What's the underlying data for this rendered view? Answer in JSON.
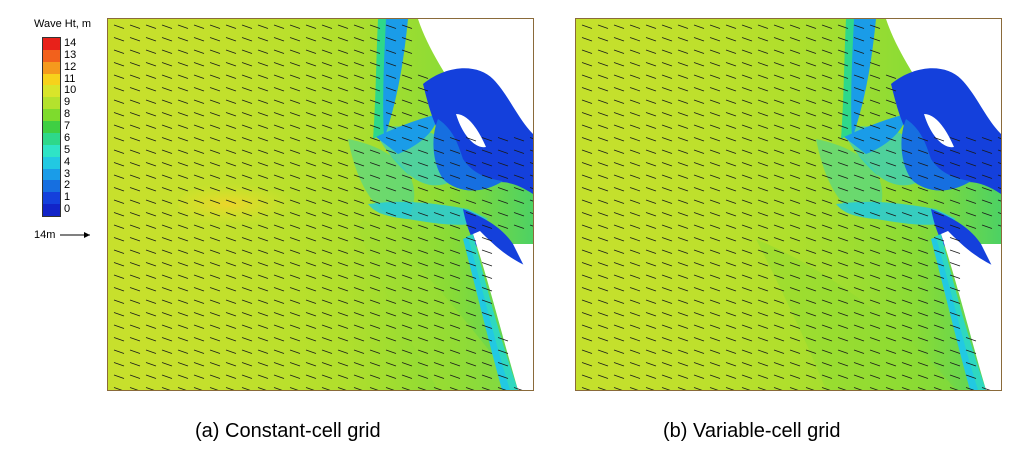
{
  "legend": {
    "title": "Wave Ht, m",
    "ticks": [
      "14",
      "13",
      "12",
      "11",
      "10",
      "9",
      "8",
      "7",
      "6",
      "5",
      "4",
      "3",
      "2",
      "1",
      "0"
    ],
    "colors": [
      "#e8211a",
      "#f2611c",
      "#f59a1d",
      "#f7d21b",
      "#d9e52a",
      "#b4e22d",
      "#7edb2d",
      "#3fcf43",
      "#2ed88a",
      "#2fe4c6",
      "#22c9e2",
      "#1a9ce8",
      "#166fe0",
      "#1440dc",
      "#1224c8"
    ],
    "scale_label": "14m"
  },
  "panels": [
    {
      "caption": "(a) Constant-cell grid"
    },
    {
      "caption": "(b) Variable-cell grid"
    }
  ]
}
